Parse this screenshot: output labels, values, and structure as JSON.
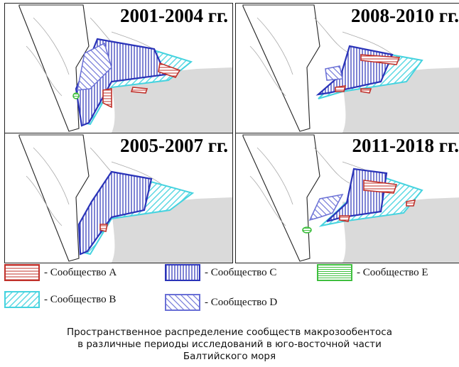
{
  "panels": [
    {
      "title": "2001-2004 гг."
    },
    {
      "title": "2008-2010 гг."
    },
    {
      "title": "2005-2007 гг."
    },
    {
      "title": "2011-2018 гг."
    }
  ],
  "legend": [
    {
      "key": "A",
      "label": "- Сообщество А",
      "color": "#c0302a",
      "pattern": "horizontal"
    },
    {
      "key": "C",
      "label": "- Сообщество С",
      "color": "#2a33b8",
      "pattern": "vertical"
    },
    {
      "key": "E",
      "label": "- Сообщество E",
      "color": "#3fbf3f",
      "pattern": "horizontal"
    },
    {
      "key": "B",
      "label": "- Сообщество В",
      "color": "#45d3df",
      "pattern": "diagonal-up"
    },
    {
      "key": "D",
      "label": "- Сообщество D",
      "color": "#6a70d6",
      "pattern": "diagonal-down"
    }
  ],
  "caption": {
    "line1": "Пространственное распределение сообществ макрозообентоса",
    "line2": "в различные периоды исследований в юго-восточной части",
    "line3": "Балтийского моря"
  }
}
